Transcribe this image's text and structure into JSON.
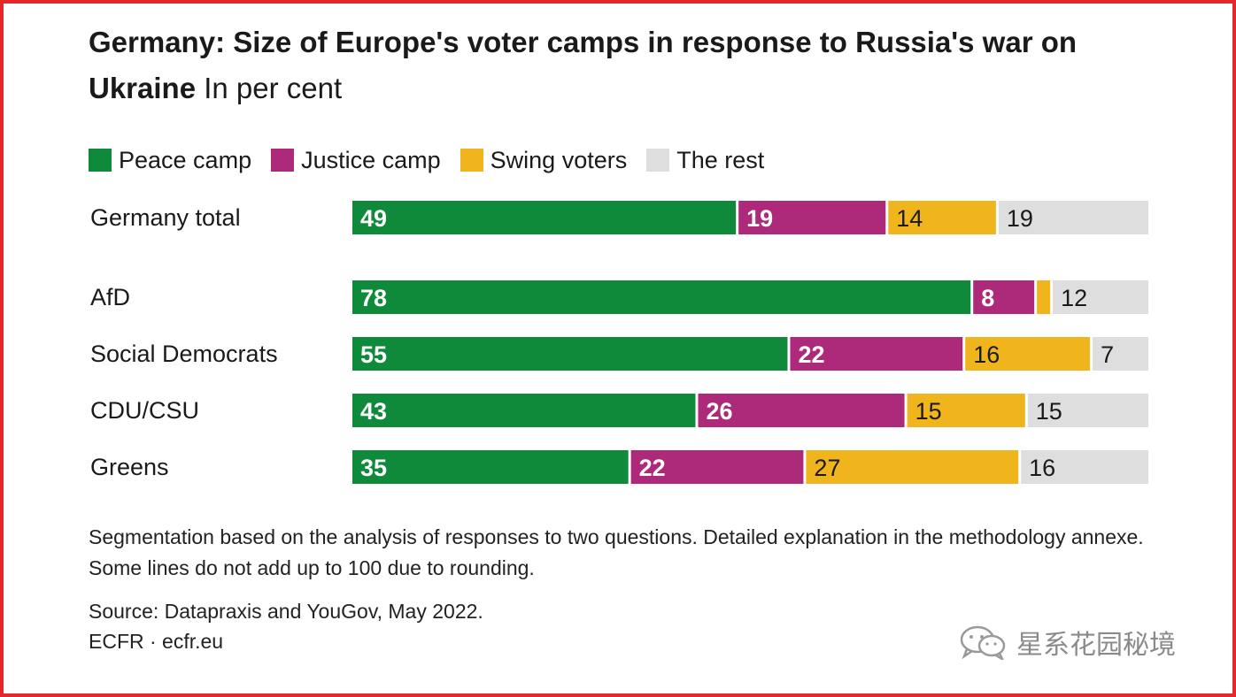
{
  "title": "Germany: Size of Europe's voter camps in response to Russia's war on Ukraine",
  "unit": "In per cent",
  "colors": {
    "peace": "#0f8a3b",
    "justice": "#ad2a7b",
    "swing": "#f0b41c",
    "rest": "#dedede"
  },
  "legend": [
    {
      "label": "Peace camp",
      "color": "#0f8a3b"
    },
    {
      "label": "Justice camp",
      "color": "#ad2a7b"
    },
    {
      "label": "Swing voters",
      "color": "#f0b41c"
    },
    {
      "label": "The rest",
      "color": "#dedede"
    }
  ],
  "note": "Segmentation based on the analysis of responses to two questions. Detailed explanation in the methodology annexe. Some lines do not add up to 100 due to rounding.",
  "source": "Source: Datapraxis and YouGov, May 2022.",
  "publisher": "ECFR · ecfr.eu",
  "watermark": {
    "icon": "wechat-icon",
    "text": "星系花园秘境"
  },
  "chart_data": {
    "type": "bar",
    "orientation": "horizontal-stacked",
    "title": "Germany: Size of Europe's voter camps in response to Russia's war on Ukraine",
    "subtitle": "In per cent",
    "categories": [
      "Germany total",
      "AfD",
      "Social Democrats",
      "CDU/CSU",
      "Greens"
    ],
    "series": [
      {
        "name": "Peace camp",
        "values": [
          49,
          78,
          55,
          43,
          35
        ],
        "labels": [
          "49",
          "78",
          "55",
          "43",
          "35"
        ]
      },
      {
        "name": "Justice camp",
        "values": [
          19,
          8,
          22,
          26,
          22
        ],
        "labels": [
          "19",
          "8",
          "22",
          "26",
          "22"
        ]
      },
      {
        "name": "Swing voters",
        "values": [
          14,
          2,
          16,
          15,
          27
        ],
        "labels": [
          "14",
          "",
          "16",
          "15",
          "27"
        ]
      },
      {
        "name": "The rest",
        "values": [
          19,
          12,
          7,
          15,
          16
        ],
        "labels": [
          "19",
          "12",
          "7",
          "15",
          "16"
        ]
      }
    ],
    "xlim": [
      0,
      100
    ],
    "legend_position": "top-left"
  }
}
